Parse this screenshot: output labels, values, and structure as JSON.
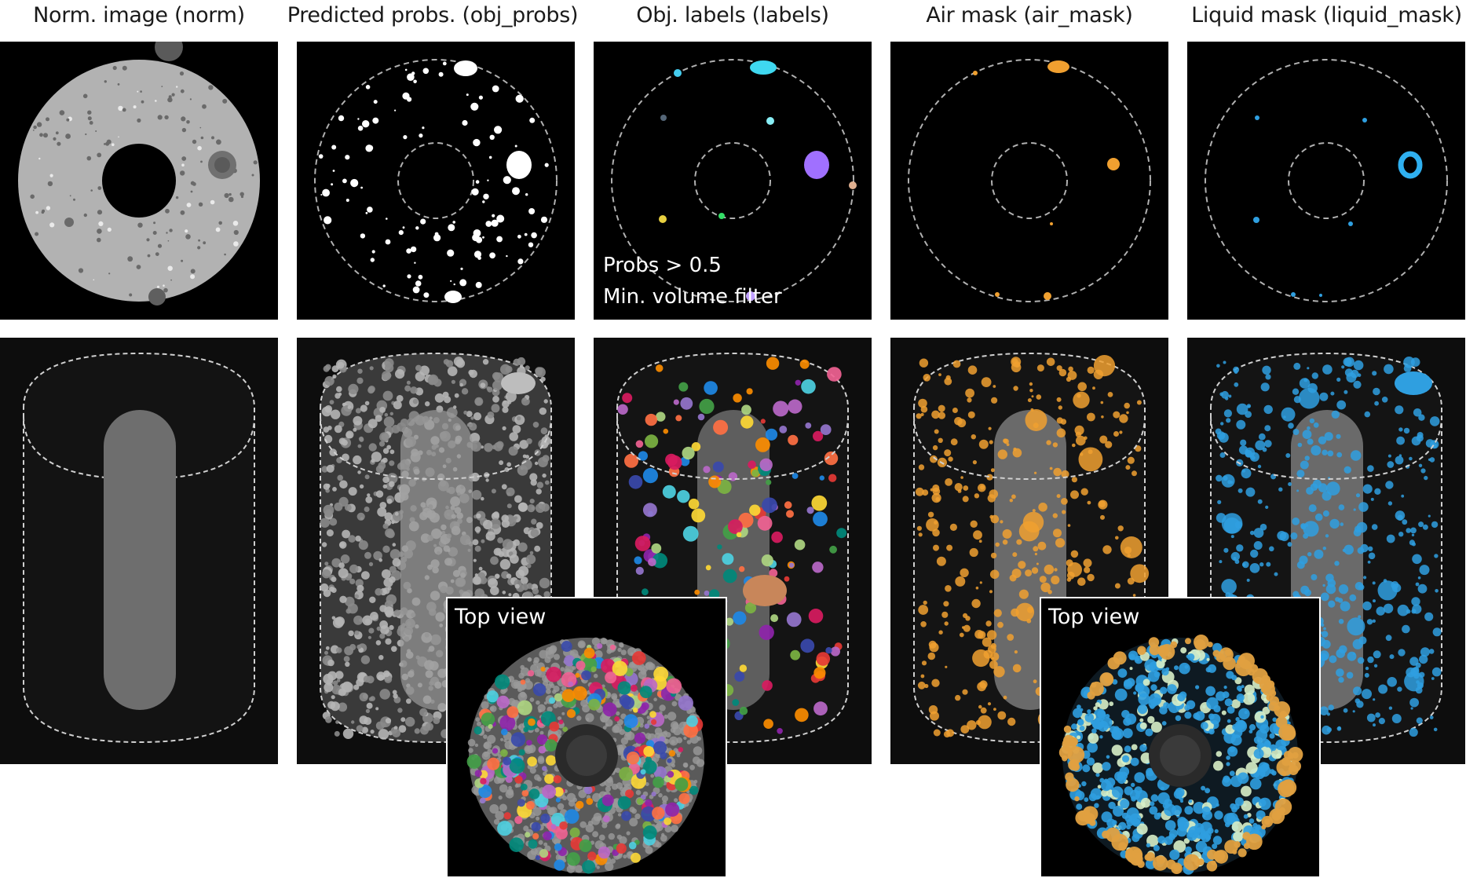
{
  "columns": [
    {
      "title": "Norm. image (norm)"
    },
    {
      "title": "Predicted probs. (obj_probs)"
    },
    {
      "title": "Obj. labels (labels)"
    },
    {
      "title": "Air mask (air_mask)"
    },
    {
      "title": "Liquid mask (liquid_mask)"
    }
  ],
  "annotations": {
    "threshold": "Probs > 0.5",
    "filter": "Min. volume filter"
  },
  "insets": {
    "labels_top_view": "Top view",
    "masks_top_view": "Top view"
  },
  "colors": {
    "air": "#f0a030",
    "liquid": "#2f9fe0",
    "background": "#000000",
    "sample_gray": "#b4b4b4"
  }
}
